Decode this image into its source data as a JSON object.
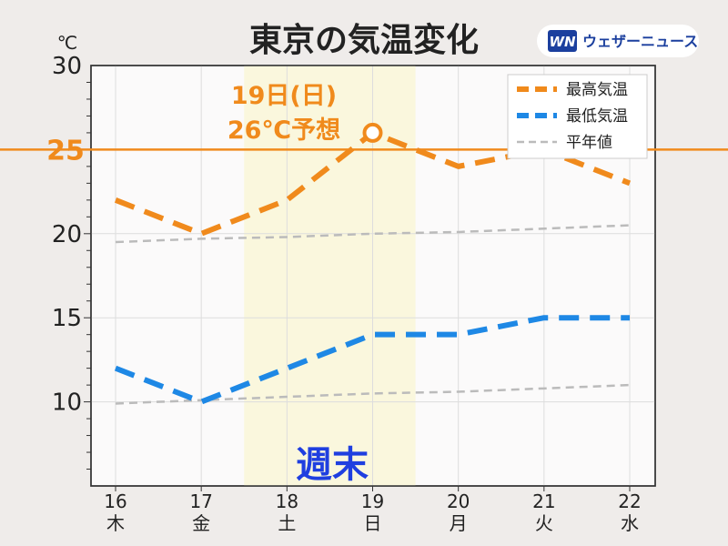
{
  "title": "東京の気温変化",
  "unit": "℃",
  "brand": {
    "logo_text": "WN",
    "name": "ウェザーニュース",
    "color": "#1b3f9e"
  },
  "colors": {
    "high": "#f08a1c",
    "low": "#1e88e5",
    "normal": "#bbbbbb",
    "reference": "#f08a1c",
    "weekend_band": "#faf7dd",
    "weekend_label": "#1f3fe0",
    "saturday": "#2a8de0",
    "sunday": "#e02a2a"
  },
  "annotation": {
    "line1": "19日(日)",
    "line2": "26℃予想"
  },
  "weekend_label": "週末",
  "chart_data": {
    "type": "line",
    "title": "東京の気温変化",
    "ylabel": "℃",
    "xlabel": "",
    "ylim": [
      5,
      30
    ],
    "yticks": [
      10,
      15,
      20,
      25,
      30
    ],
    "grid": true,
    "legend_position": "top-right",
    "x": [
      16,
      17,
      18,
      19,
      20,
      21,
      22
    ],
    "x_labels": [
      "16",
      "17",
      "18",
      "19",
      "20",
      "21",
      "22"
    ],
    "x_sublabels": [
      "木",
      "金",
      "土",
      "日",
      "月",
      "火",
      "水"
    ],
    "reference_line": 25,
    "highlight_range": [
      18,
      19
    ],
    "highlight_point": {
      "x": 19,
      "y": 26
    },
    "series": [
      {
        "name": "最高気温",
        "values": [
          22,
          20,
          22,
          26,
          24,
          25,
          23
        ]
      },
      {
        "name": "最低気温",
        "values": [
          12,
          10,
          12,
          14,
          14,
          15,
          15
        ]
      },
      {
        "name": "平年値",
        "values": [
          19.5,
          19.7,
          19.8,
          20.0,
          20.1,
          20.3,
          20.5
        ]
      },
      {
        "name": "",
        "values": [
          9.9,
          10.1,
          10.3,
          10.5,
          10.6,
          10.8,
          11.0
        ]
      }
    ]
  }
}
